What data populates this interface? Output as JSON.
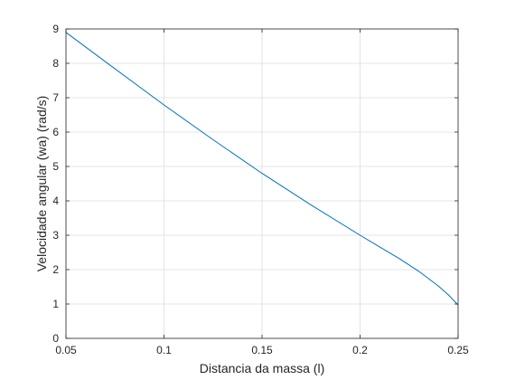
{
  "chart_data": {
    "type": "line",
    "title": "",
    "xlabel": "Distancia da massa (l)",
    "ylabel": "Velocidade angular (wa) (rad/s)",
    "xlim": [
      0.05,
      0.25
    ],
    "ylim": [
      0,
      9
    ],
    "xticks": [
      0.05,
      0.1,
      0.15,
      0.2,
      0.25
    ],
    "xtick_labels": [
      "0.05",
      "0.1",
      "0.15",
      "0.2",
      "0.25"
    ],
    "yticks": [
      0,
      1,
      2,
      3,
      4,
      5,
      6,
      7,
      8,
      9
    ],
    "ytick_labels": [
      "0",
      "1",
      "2",
      "3",
      "4",
      "5",
      "6",
      "7",
      "8",
      "9"
    ],
    "grid": true,
    "series": [
      {
        "color": "#0072bd",
        "x": [
          0.05,
          0.075,
          0.1,
          0.125,
          0.15,
          0.175,
          0.2,
          0.21,
          0.22,
          0.23,
          0.24,
          0.245,
          0.25
        ],
        "y": [
          8.9,
          7.84,
          6.79,
          5.78,
          4.8,
          3.88,
          3.0,
          2.66,
          2.32,
          1.95,
          1.52,
          1.27,
          0.97
        ]
      }
    ]
  }
}
